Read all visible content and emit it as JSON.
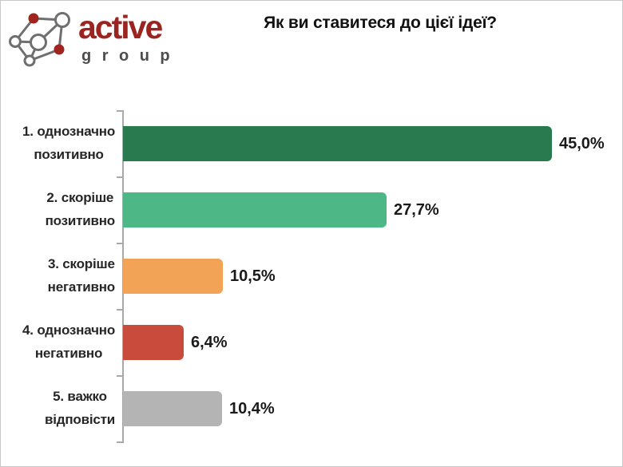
{
  "logo": {
    "brand": "active",
    "subbrand": "group",
    "brand_color": "#9b2420",
    "subbrand_color": "#4d4d4d",
    "icon": "network-graph-icon",
    "icon_node_red": "#a02420",
    "icon_outline": "#6f6f6f"
  },
  "chart_data": {
    "type": "bar",
    "orientation": "horizontal",
    "title": "Як ви ставитеся до цієї ідеї?",
    "categories": [
      "1. однозначно\nпозитивно",
      "2. скоріше\nпозитивно",
      "3. скоріше\nнегативно",
      "4. однозначно\nнегативно",
      "5. важко\nвідповісти"
    ],
    "values": [
      45.0,
      27.7,
      10.5,
      6.4,
      10.4
    ],
    "value_labels": [
      "45,0%",
      "27,7%",
      "10,5%",
      "6,4%",
      "10,4%"
    ],
    "bar_colors": [
      "#2a7a50",
      "#4db786",
      "#f2a355",
      "#c94b3b",
      "#b4b4b4"
    ],
    "xlim": [
      0,
      50
    ],
    "xlabel": "",
    "ylabel": "",
    "grid": false,
    "legend": false,
    "axis_color": "#a9a9a9"
  }
}
